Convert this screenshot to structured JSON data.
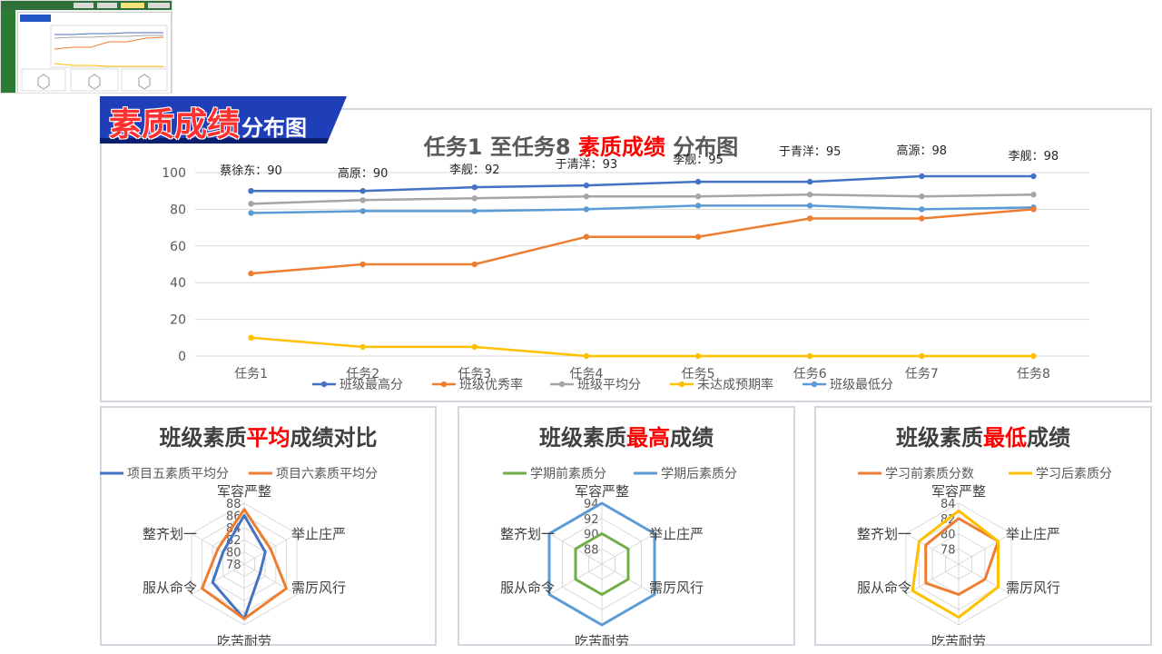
{
  "banner": {
    "title_red": "素质成绩",
    "title_white": "分布图"
  },
  "main_chart_title": {
    "part1": "任务1 至任务8 ",
    "red": "素质成绩",
    "part2": " 分布图"
  },
  "radar_titles": [
    {
      "pre": "班级素质",
      "red": "平均",
      "post": "成绩对比"
    },
    {
      "pre": "班级素质",
      "red": "最高",
      "post": "成绩"
    },
    {
      "pre": "班级素质",
      "red": "最低",
      "post": "成绩"
    }
  ],
  "chart_data": [
    {
      "type": "line",
      "title": "任务1 至任务8 素质成绩 分布图",
      "categories": [
        "任务1",
        "任务2",
        "任务3",
        "任务4",
        "任务5",
        "任务6",
        "任务7",
        "任务8"
      ],
      "ylim": [
        0,
        100
      ],
      "yticks": [
        0,
        20,
        40,
        60,
        80,
        100
      ],
      "grid": true,
      "legend": "bottom",
      "series": [
        {
          "name": "班级最高分",
          "color": "#4472c4",
          "values": [
            90,
            90,
            92,
            93,
            95,
            95,
            98,
            98
          ]
        },
        {
          "name": "班级优秀率",
          "color": "#ed7d31",
          "values": [
            45,
            50,
            50,
            65,
            65,
            75,
            75,
            80
          ]
        },
        {
          "name": "班级平均分",
          "color": "#a5a5a5",
          "values": [
            83,
            85,
            86,
            87,
            87,
            88,
            87,
            88
          ]
        },
        {
          "name": "未达成预期率",
          "color": "#ffc000",
          "values": [
            10,
            5,
            5,
            0,
            0,
            0,
            0,
            0
          ]
        },
        {
          "name": "班级最低分",
          "color": "#5b9bd5",
          "values": [
            78,
            79,
            79,
            80,
            82,
            82,
            80,
            81
          ]
        }
      ],
      "annotations": [
        "蔡徐东：90",
        "高原：90",
        "李舰：92",
        "于清洋：93",
        "李舰：95",
        "于青洋：95",
        "高源：98",
        "李舰：98"
      ]
    },
    {
      "type": "radar",
      "axes": [
        "军容严整",
        "举止庄严",
        "需厉风行",
        "吃苦耐劳",
        "服从命令",
        "整齐划一"
      ],
      "rlim": [
        78,
        88
      ],
      "rticks": [
        78,
        80,
        82,
        84,
        86,
        88
      ],
      "legend": "top",
      "series": [
        {
          "name": "项目五素质平均分",
          "color": "#4472c4",
          "values": [
            86,
            82,
            81,
            87,
            84,
            82
          ]
        },
        {
          "name": "项目六素质平均分",
          "color": "#ed7d31",
          "values": [
            87,
            83,
            86,
            87,
            86,
            83
          ]
        }
      ]
    },
    {
      "type": "radar",
      "axes": [
        "军容严整",
        "举止庄严",
        "需厉风行",
        "吃苦耐劳",
        "服从命令",
        "整齐划一"
      ],
      "rlim": [
        86,
        94
      ],
      "rticks": [
        88,
        90,
        92,
        94
      ],
      "legend": "top",
      "series": [
        {
          "name": "学期前素质分",
          "color": "#70ad47",
          "values": [
            90,
            90,
            90,
            90,
            90,
            90
          ]
        },
        {
          "name": "学期后素质分",
          "color": "#5b9bd5",
          "values": [
            94,
            94,
            94,
            94,
            94,
            94
          ]
        }
      ]
    },
    {
      "type": "radar",
      "axes": [
        "军容严整",
        "举止庄严",
        "需厉风行",
        "吃苦耐劳",
        "服从命令",
        "整齐划一"
      ],
      "rlim": [
        76,
        84
      ],
      "rticks": [
        78,
        80,
        82,
        84
      ],
      "legend": "top",
      "series": [
        {
          "name": "学习前素质分数",
          "color": "#ed7d31",
          "values": [
            82,
            82,
            80,
            80,
            81,
            81
          ]
        },
        {
          "name": "学习后素质分",
          "color": "#ffc000",
          "values": [
            83,
            82,
            82,
            83,
            83,
            82
          ]
        }
      ]
    }
  ]
}
